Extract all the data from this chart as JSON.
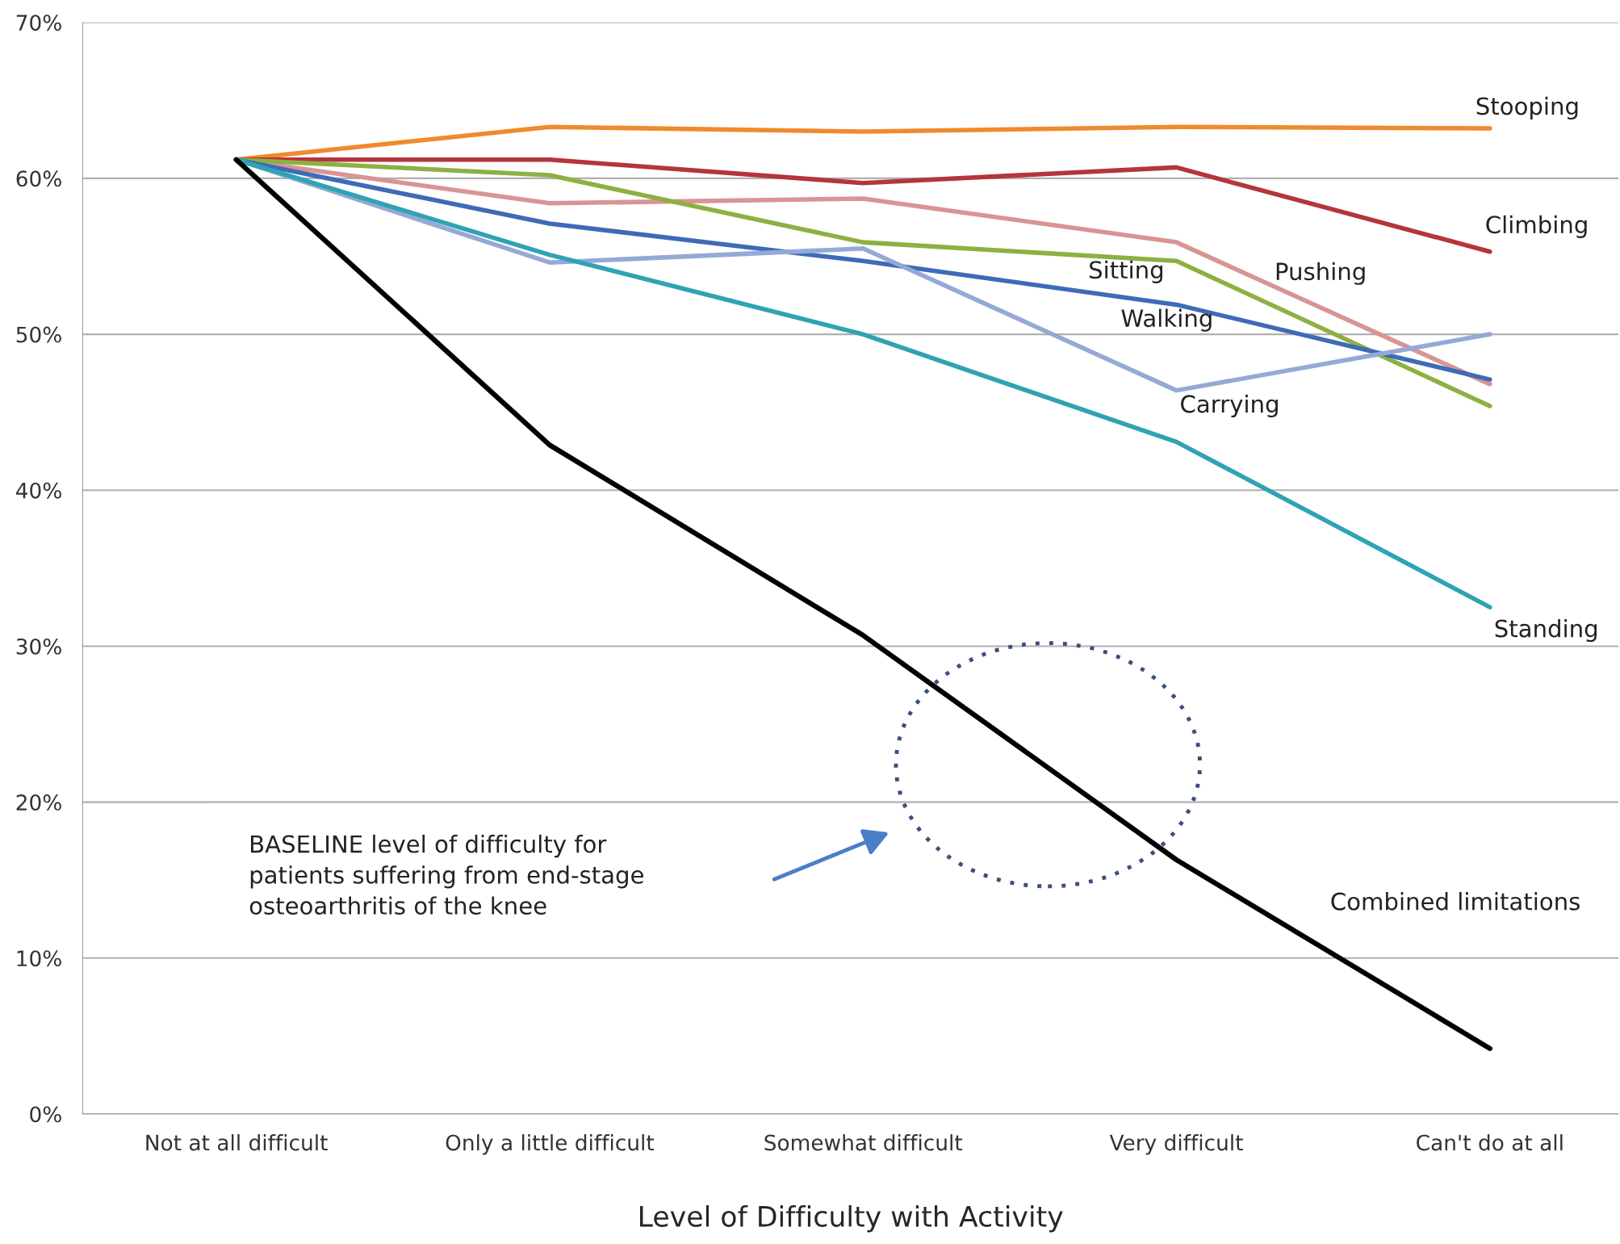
{
  "chart_data": {
    "type": "line",
    "xlabel": "Level of Difficulty with Activity",
    "categories": [
      "Not at all difficult",
      "Only a little difficult",
      "Somewhat difficult",
      "Very difficult",
      "Can't do at all"
    ],
    "series": [
      {
        "name": "Stooping",
        "color": "#f08a2c",
        "values": [
          61.2,
          63.3,
          63.0,
          63.3,
          63.2
        ]
      },
      {
        "name": "Climbing",
        "color": "#b5353b",
        "values": [
          61.2,
          61.2,
          59.7,
          60.7,
          55.3
        ]
      },
      {
        "name": "Pushing",
        "color": "#d99493",
        "values": [
          61.2,
          58.4,
          58.7,
          55.9,
          46.8
        ]
      },
      {
        "name": "Sitting",
        "color": "#8db043",
        "values": [
          61.2,
          60.2,
          55.9,
          54.7,
          45.4
        ]
      },
      {
        "name": "Walking",
        "color": "#3e6bb8",
        "values": [
          61.2,
          57.1,
          54.7,
          51.9,
          47.1
        ]
      },
      {
        "name": "Carrying",
        "color": "#95a9d6",
        "values": [
          61.2,
          54.6,
          55.5,
          46.4,
          50.0
        ]
      },
      {
        "name": "Standing",
        "color": "#2fa3b4",
        "values": [
          61.2,
          55.1,
          50.0,
          43.1,
          32.5
        ]
      },
      {
        "name": "Combined limitations",
        "color": "#000000",
        "values": [
          61.2,
          42.9,
          30.7,
          16.3,
          4.2
        ]
      }
    ],
    "ylim": [
      0,
      70
    ],
    "yticks": [
      {
        "value": 0,
        "label": "0%"
      },
      {
        "value": 10,
        "label": "10%"
      },
      {
        "value": 20,
        "label": "20%"
      },
      {
        "value": 30,
        "label": "30%"
      },
      {
        "value": 40,
        "label": "40%"
      },
      {
        "value": 50,
        "label": "50%"
      },
      {
        "value": 60,
        "label": "60%"
      },
      {
        "value": 70,
        "label": "70%"
      }
    ],
    "grid": "y",
    "legend": false,
    "line_style": "solid",
    "marker": "none",
    "annotations": [
      "BASELINE level of difficulty for\npatients suffering from end-stage\nosteoarthritis of the knee"
    ]
  }
}
